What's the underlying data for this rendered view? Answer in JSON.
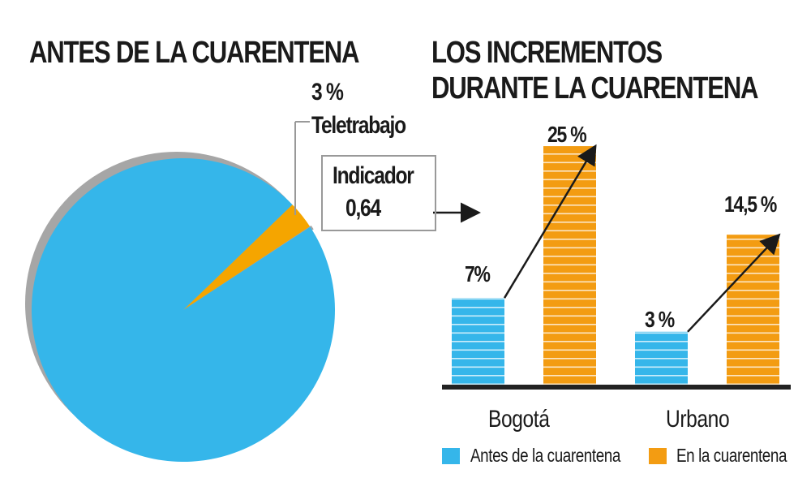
{
  "chart_data": [
    {
      "type": "pie",
      "title": "ANTES DE LA CUARENTENA",
      "slices": [
        {
          "label": "Teletrabajo",
          "value": 3,
          "value_label": "3 %",
          "color": "#F5A500"
        },
        {
          "label": "",
          "value": 97,
          "color": "#35B6EA"
        }
      ]
    },
    {
      "type": "bar",
      "title": "LOS INCREMENTOS",
      "subtitle": "DURANTE LA CUARENTENA",
      "categories": [
        "Bogotá",
        "Urbano"
      ],
      "series": [
        {
          "name": "Antes de la cuarentena",
          "values": [
            7,
            3
          ],
          "labels": [
            "7%",
            "3 %"
          ],
          "color": "#35B6EA"
        },
        {
          "name": "En la cuarentena",
          "values": [
            25,
            14.5
          ],
          "labels": [
            "25 %",
            "14,5 %"
          ],
          "color": "#F39C12"
        }
      ],
      "legend": "bottom",
      "grid": false,
      "annotation": {
        "label": "Indicador",
        "value": "0,64"
      }
    }
  ]
}
